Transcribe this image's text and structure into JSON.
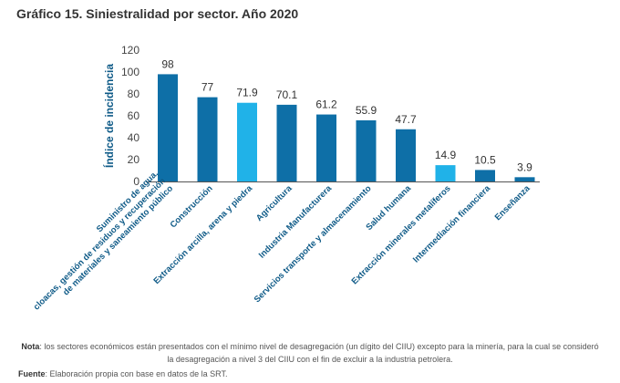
{
  "title": "Gráfico 15. Siniestralidad por sector. Año 2020",
  "chart_data": {
    "type": "bar",
    "title": "Gráfico 15. Siniestralidad por sector. Año 2020",
    "ylabel": "Índice de incidencia",
    "xlabel": "",
    "ylim": [
      0,
      120
    ],
    "yticks": [
      0,
      20,
      40,
      60,
      80,
      100,
      120
    ],
    "grid": false,
    "categories": [
      [
        "Suministro de agua,",
        "cloacas, gestión de residuos y recuperación",
        "de materiales y saneamiento público"
      ],
      [
        "Construcción"
      ],
      [
        "Extracción arcilla, arena y piedra"
      ],
      [
        "Agricultura"
      ],
      [
        "Industria Manufacturera"
      ],
      [
        "Servicios transporte y almacenamiento"
      ],
      [
        "Salud humana"
      ],
      [
        "Extracción minerales metalíferos"
      ],
      [
        "Intermediación financiera"
      ],
      [
        "Enseñanza"
      ]
    ],
    "values": [
      98,
      77,
      71.9,
      70.1,
      61.2,
      55.9,
      47.7,
      14.9,
      10.5,
      3.9
    ],
    "value_labels": [
      "98",
      "77",
      "71.9",
      "70.1",
      "61.2",
      "55.9",
      "47.7",
      "14.9",
      "10.5",
      "3.9"
    ],
    "highlighted": [
      false,
      false,
      true,
      false,
      false,
      false,
      false,
      true,
      false,
      false
    ],
    "colors": {
      "default": "#0e6fa7",
      "highlight": "#20b2e8",
      "axis_label": "#0e5a87",
      "axis": "#555555"
    }
  },
  "note": {
    "label": "Nota",
    "text": ": los sectores económicos están presentados con el mínimo nivel de desagregación (un dígito del CIIU) excepto para la minería, para la cual se consideró la desagregación a nivel 3 del CIIU con el fin de excluir a la industria petrolera."
  },
  "source": {
    "label": "Fuente",
    "text": ": Elaboración propia con base en datos de la SRT."
  }
}
